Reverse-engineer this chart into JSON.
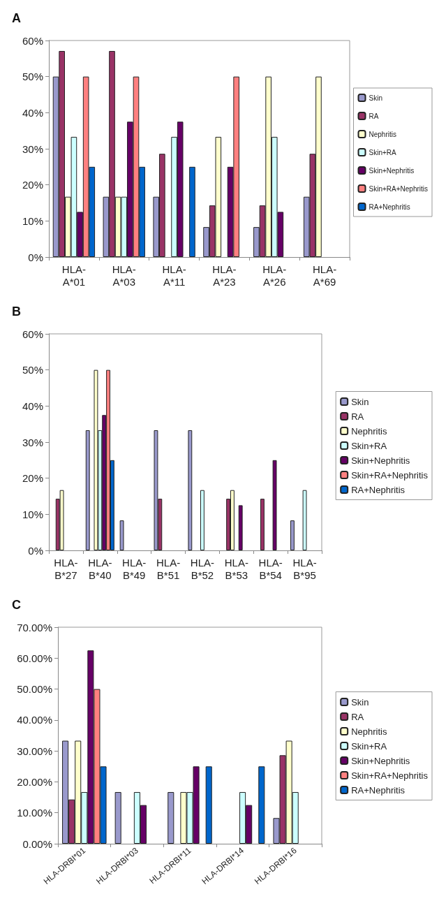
{
  "chart_data": [
    {
      "type": "bar",
      "title": "A",
      "categories": [
        "HLA-A*01",
        "HLA-A*03",
        "HLA-A*11",
        "HLA-A*23",
        "HLA-A*26",
        "HLA-A*69"
      ],
      "series": [
        {
          "name": "Skin",
          "color": "#9999cc",
          "values": [
            50,
            16.7,
            16.7,
            8.3,
            8.3,
            16.7
          ]
        },
        {
          "name": "RA",
          "color": "#993366",
          "values": [
            57.1,
            57.1,
            28.6,
            14.3,
            14.3,
            28.6
          ]
        },
        {
          "name": "Nephritis",
          "color": "#ffffcc",
          "values": [
            16.7,
            16.7,
            null,
            33.3,
            50,
            50
          ]
        },
        {
          "name": "Skin+RA",
          "color": "#ccffff",
          "values": [
            33.3,
            16.7,
            33.3,
            null,
            33.3,
            null
          ]
        },
        {
          "name": "Skin+Nephritis",
          "color": "#660066",
          "values": [
            12.5,
            37.5,
            37.5,
            25,
            12.5,
            null
          ]
        },
        {
          "name": "Skin+RA+Nephritis",
          "color": "#ff8080",
          "values": [
            50,
            50,
            null,
            50,
            null,
            null
          ]
        },
        {
          "name": "RA+Nephritis",
          "color": "#0066cc",
          "values": [
            25,
            25,
            25,
            null,
            null,
            null
          ]
        }
      ],
      "ylim": [
        0,
        60
      ],
      "yticks": [
        {
          "value": 0,
          "label": "0%"
        },
        {
          "value": 10,
          "label": "10%"
        },
        {
          "value": 20,
          "label": "20%"
        },
        {
          "value": 30,
          "label": "30%"
        },
        {
          "value": 40,
          "label": "40%"
        },
        {
          "value": 50,
          "label": "50%"
        },
        {
          "value": 60,
          "label": "60%"
        }
      ],
      "grid": false,
      "legend": "right"
    },
    {
      "type": "bar",
      "title": "B",
      "categories": [
        "HLA-B*27",
        "HLA-B*40",
        "HLA-B*49",
        "HLA-B*51",
        "HLA-B*52",
        "HLA-B*53",
        "HLA-B*54",
        "HLA-B*95"
      ],
      "series": [
        {
          "name": "Skin",
          "color": "#9999cc",
          "values": [
            null,
            33.3,
            8.3,
            33.3,
            33.3,
            null,
            null,
            8.3
          ]
        },
        {
          "name": "RA",
          "color": "#993366",
          "values": [
            14.3,
            null,
            null,
            14.3,
            null,
            14.3,
            14.3,
            null
          ]
        },
        {
          "name": "Nephritis",
          "color": "#ffffcc",
          "values": [
            16.7,
            50,
            null,
            null,
            null,
            16.7,
            null,
            null
          ]
        },
        {
          "name": "Skin+RA",
          "color": "#ccffff",
          "values": [
            null,
            33.3,
            null,
            null,
            16.7,
            null,
            null,
            16.7
          ]
        },
        {
          "name": "Skin+Nephritis",
          "color": "#660066",
          "values": [
            null,
            37.5,
            null,
            null,
            null,
            12.5,
            25,
            null
          ]
        },
        {
          "name": "Skin+RA+Nephritis",
          "color": "#ff8080",
          "values": [
            null,
            50,
            null,
            null,
            null,
            null,
            null,
            null
          ]
        },
        {
          "name": "RA+Nephritis",
          "color": "#0066cc",
          "values": [
            null,
            25,
            null,
            null,
            null,
            null,
            null,
            null
          ]
        }
      ],
      "ylim": [
        0,
        60
      ],
      "yticks": [
        {
          "value": 0,
          "label": "0%"
        },
        {
          "value": 10,
          "label": "10%"
        },
        {
          "value": 20,
          "label": "20%"
        },
        {
          "value": 30,
          "label": "30%"
        },
        {
          "value": 40,
          "label": "40%"
        },
        {
          "value": 50,
          "label": "50%"
        },
        {
          "value": 60,
          "label": "60%"
        }
      ],
      "grid": false,
      "legend": "right"
    },
    {
      "type": "bar",
      "title": "C",
      "categories": [
        "HLA-DRBI*01",
        "HLA-DRBI*03",
        "HLA-DRBI*11",
        "HLA-DRBI*14",
        "HLA-DRBI*16"
      ],
      "series": [
        {
          "name": "Skin",
          "color": "#9999cc",
          "values": [
            33.3,
            16.7,
            16.7,
            null,
            8.3
          ]
        },
        {
          "name": "RA",
          "color": "#993366",
          "values": [
            14.3,
            null,
            null,
            null,
            28.6
          ]
        },
        {
          "name": "Nephritis",
          "color": "#ffffcc",
          "values": [
            33.3,
            null,
            16.7,
            null,
            33.3
          ]
        },
        {
          "name": "Skin+RA",
          "color": "#ccffff",
          "values": [
            16.7,
            16.7,
            16.7,
            16.7,
            16.7
          ]
        },
        {
          "name": "Skin+Nephritis",
          "color": "#660066",
          "values": [
            62.5,
            12.5,
            25,
            12.5,
            null
          ]
        },
        {
          "name": "Skin+RA+Nephritis",
          "color": "#ff8080",
          "values": [
            50,
            null,
            null,
            null,
            null
          ]
        },
        {
          "name": "RA+Nephritis",
          "color": "#0066cc",
          "values": [
            25,
            null,
            25,
            25,
            null
          ]
        }
      ],
      "ylim": [
        0,
        70
      ],
      "yticks": [
        {
          "value": 0,
          "label": "0.00%"
        },
        {
          "value": 10,
          "label": "10.00%"
        },
        {
          "value": 20,
          "label": "20.00%"
        },
        {
          "value": 30,
          "label": "30.00%"
        },
        {
          "value": 40,
          "label": "40.00%"
        },
        {
          "value": 50,
          "label": "50.00%"
        },
        {
          "value": 60,
          "label": "60.00%"
        },
        {
          "value": 70,
          "label": "70.00%"
        }
      ],
      "grid": false,
      "legend": "right"
    }
  ]
}
